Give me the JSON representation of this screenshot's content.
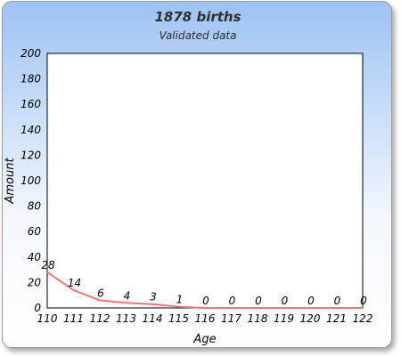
{
  "chart_data": {
    "type": "line",
    "title": "1878 births",
    "subtitle": "Validated data",
    "xlabel": "Age",
    "ylabel": "Amount",
    "categories": [
      "110",
      "111",
      "112",
      "113",
      "114",
      "115",
      "116",
      "117",
      "118",
      "119",
      "120",
      "121",
      "122"
    ],
    "series": [
      {
        "values": [
          28,
          14,
          6,
          4,
          3,
          1,
          0,
          0,
          0,
          0,
          0,
          0,
          0
        ]
      }
    ],
    "data_labels": [
      "28",
      "14",
      "6",
      "4",
      "3",
      "1",
      "0",
      "0",
      "0",
      "0",
      "0",
      "0",
      "0"
    ],
    "ylim": [
      0,
      200
    ],
    "yticks": [
      "0",
      "20",
      "40",
      "60",
      "80",
      "100",
      "120",
      "140",
      "160",
      "180",
      "200"
    ],
    "grid": false,
    "line_color": "#f07575"
  }
}
